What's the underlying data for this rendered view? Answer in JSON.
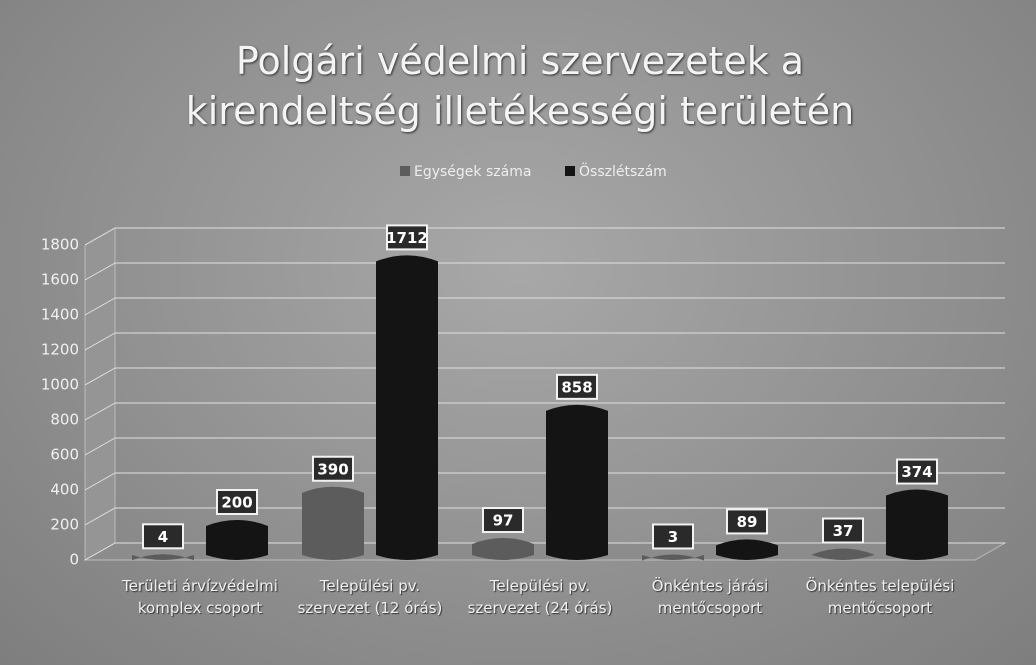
{
  "chart_data": {
    "type": "bar",
    "title": "Polgári védelmi szervezetek a kirendeltség illetékességi területén",
    "categories": [
      "Területi árvízvédelmi komplex csoport",
      "Települési pv. szervezet (12 órás)",
      "Települési pv. szervezet (24 órás)",
      "Önkéntes járási mentőcsoport",
      "Önkéntes települési mentőcsoport"
    ],
    "series": [
      {
        "name": "Egységek száma",
        "color": "#5c5c5c",
        "values": [
          4,
          390,
          97,
          3,
          37
        ]
      },
      {
        "name": "Összlétszám",
        "color": "#141414",
        "values": [
          200,
          1712,
          858,
          89,
          374
        ]
      }
    ],
    "ylim": [
      0,
      1800
    ],
    "yticks": [
      0,
      200,
      400,
      600,
      800,
      1000,
      1200,
      1400,
      1600,
      1800
    ],
    "grid": true,
    "legend": "top"
  }
}
